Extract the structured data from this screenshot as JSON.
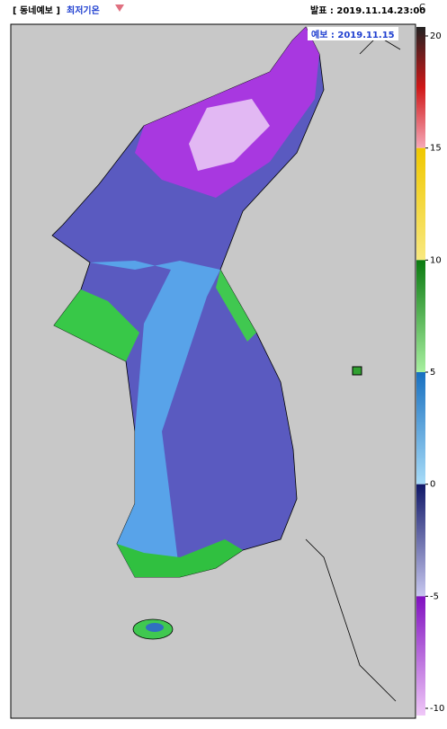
{
  "header": {
    "product": "[ 동네예보 ]",
    "variable": "최저기온",
    "issued": "발표 : 2019.11.14.23:00",
    "valid": "예보 : 2019.11.15",
    "unit": "C"
  },
  "legend": {
    "ticks": [
      20,
      15,
      10,
      5,
      0,
      -5,
      -10
    ],
    "colors": [
      [
        "#222222",
        "#d01818",
        "#f6a8b8"
      ],
      [
        "#f0c800",
        "#f8e880"
      ],
      [
        "#0a7a10",
        "#a8f0a0"
      ],
      [
        "#1870c0",
        "#a8dcf8"
      ],
      [
        "#101868",
        "#c8c8f0"
      ],
      [
        "#8010c0",
        "#f0c8f8"
      ]
    ]
  }
}
